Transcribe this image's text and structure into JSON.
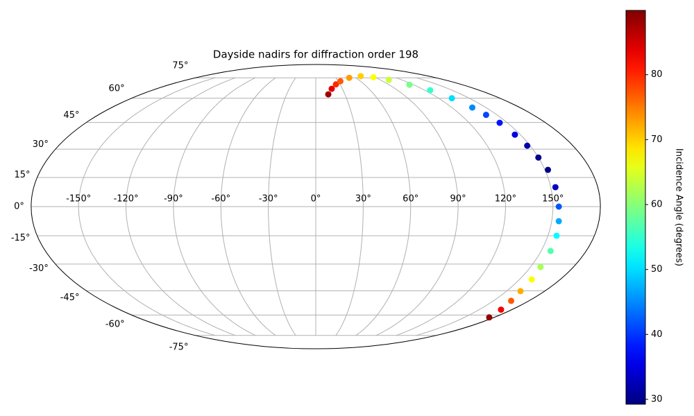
{
  "chart_data": {
    "type": "scatter",
    "projection": "mollweide",
    "title": "Dayside nadirs for diffraction order 198",
    "grid": true,
    "colormap": "jet",
    "colorbar_label": "Incidence Angle (degrees)",
    "clim": [
      29.25,
      89.9
    ],
    "colorbar_ticks": [
      30,
      40,
      50,
      60,
      70,
      80
    ],
    "xticks": [
      {
        "value": -150,
        "label": "-150°"
      },
      {
        "value": -120,
        "label": "-120°"
      },
      {
        "value": -90,
        "label": "-90°"
      },
      {
        "value": -60,
        "label": "-60°"
      },
      {
        "value": -30,
        "label": "-30°"
      },
      {
        "value": 0,
        "label": "0°"
      },
      {
        "value": 30,
        "label": "30°"
      },
      {
        "value": 60,
        "label": "60°"
      },
      {
        "value": 90,
        "label": "90°"
      },
      {
        "value": 120,
        "label": "120°"
      },
      {
        "value": 150,
        "label": "150°"
      }
    ],
    "yticks": [
      {
        "value": -75,
        "label": "-75°"
      },
      {
        "value": -60,
        "label": "-60°"
      },
      {
        "value": -45,
        "label": "-45°"
      },
      {
        "value": -30,
        "label": "-30°"
      },
      {
        "value": -15,
        "label": "-15°"
      },
      {
        "value": 0,
        "label": "0°"
      },
      {
        "value": 15,
        "label": "15°"
      },
      {
        "value": 30,
        "label": "30°"
      },
      {
        "value": 45,
        "label": "45°"
      },
      {
        "value": 60,
        "label": "60°"
      },
      {
        "value": 75,
        "label": "75°"
      }
    ],
    "x": [
      12.9,
      18,
      25,
      33,
      50,
      71.5,
      88,
      102,
      115,
      126,
      133,
      138,
      141,
      144,
      146,
      148,
      150,
      152,
      153,
      153.7,
      154.5,
      155.6,
      156.3,
      157,
      159,
      161,
      165,
      170,
      175
    ],
    "y": [
      62.6,
      66.5,
      69.8,
      72.2,
      75,
      76.4,
      75.5,
      73.3,
      69.5,
      65.5,
      60,
      54,
      49.5,
      44.8,
      38,
      31.9,
      25.5,
      19,
      10,
      0,
      -7.5,
      -15,
      -23,
      -31.6,
      -38.5,
      -45.2,
      -51,
      -56.5,
      -61.6
    ],
    "values": [
      88,
      84,
      80,
      77,
      73,
      70,
      67,
      64,
      59,
      55,
      50,
      45,
      41,
      38,
      35,
      32,
      30,
      29.5,
      33,
      42,
      47,
      52,
      57,
      62,
      67,
      72,
      77,
      83,
      89
    ]
  }
}
